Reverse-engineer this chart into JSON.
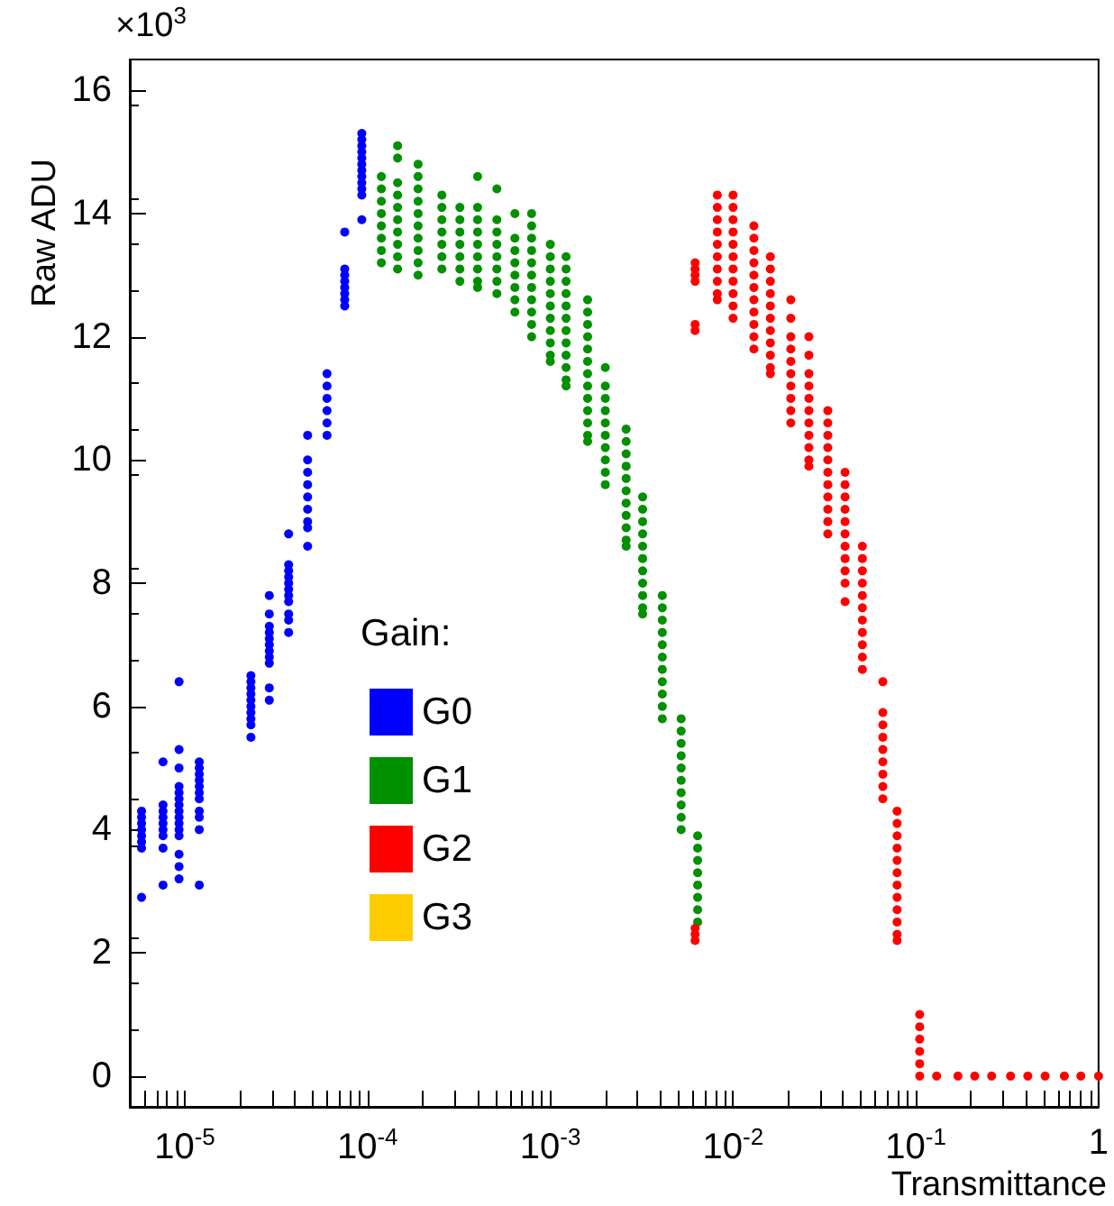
{
  "chart_data": {
    "type": "scatter",
    "xlabel": "Transmittance",
    "ylabel": "Raw ADU",
    "legend_title": "Gain:",
    "annotations": [
      "×10$^{3}$"
    ],
    "log": "x",
    "grid": false,
    "legend": "left",
    "marker": "circle",
    "xlim": [
      5e-06,
      1
    ],
    "ylim": [
      -0.5,
      16.5
    ],
    "xticks": [
      {
        "value": 6e-06,
        "label": null
      },
      {
        "value": 7e-06,
        "label": null
      },
      {
        "value": 8e-06,
        "label": null
      },
      {
        "value": 9e-06,
        "label": null
      },
      {
        "value": 1e-05,
        "label": "10$^{-5}$"
      },
      {
        "value": 2e-05,
        "label": null
      },
      {
        "value": 3e-05,
        "label": null
      },
      {
        "value": 4e-05,
        "label": null
      },
      {
        "value": 5e-05,
        "label": null
      },
      {
        "value": 6e-05,
        "label": null
      },
      {
        "value": 7e-05,
        "label": null
      },
      {
        "value": 8e-05,
        "label": null
      },
      {
        "value": 9e-05,
        "label": null
      },
      {
        "value": 0.0001,
        "label": "10$^{-4}$"
      },
      {
        "value": 0.0002,
        "label": null
      },
      {
        "value": 0.0003,
        "label": null
      },
      {
        "value": 0.0004,
        "label": null
      },
      {
        "value": 0.0005,
        "label": null
      },
      {
        "value": 0.0006,
        "label": null
      },
      {
        "value": 0.0007,
        "label": null
      },
      {
        "value": 0.0008,
        "label": null
      },
      {
        "value": 0.0009,
        "label": null
      },
      {
        "value": 0.001,
        "label": "10$^{-3}$"
      },
      {
        "value": 0.002,
        "label": null
      },
      {
        "value": 0.003,
        "label": null
      },
      {
        "value": 0.004,
        "label": null
      },
      {
        "value": 0.005,
        "label": null
      },
      {
        "value": 0.006,
        "label": null
      },
      {
        "value": 0.007,
        "label": null
      },
      {
        "value": 0.008,
        "label": null
      },
      {
        "value": 0.009,
        "label": null
      },
      {
        "value": 0.01,
        "label": "10$^{-2}$"
      },
      {
        "value": 0.02,
        "label": null
      },
      {
        "value": 0.03,
        "label": null
      },
      {
        "value": 0.04,
        "label": null
      },
      {
        "value": 0.05,
        "label": null
      },
      {
        "value": 0.06,
        "label": null
      },
      {
        "value": 0.07,
        "label": null
      },
      {
        "value": 0.08,
        "label": null
      },
      {
        "value": 0.09,
        "label": null
      },
      {
        "value": 0.1,
        "label": "10$^{-1}$"
      },
      {
        "value": 0.2,
        "label": null
      },
      {
        "value": 0.3,
        "label": null
      },
      {
        "value": 0.4,
        "label": null
      },
      {
        "value": 0.5,
        "label": null
      },
      {
        "value": 0.6,
        "label": null
      },
      {
        "value": 0.7,
        "label": null
      },
      {
        "value": 0.8,
        "label": null
      },
      {
        "value": 0.9,
        "label": null
      },
      {
        "value": 1,
        "label": "1"
      }
    ],
    "yticks": [
      0,
      2,
      4,
      6,
      8,
      10,
      12,
      14,
      16
    ],
    "series": [
      {
        "name": "G0",
        "color": "#0000ff",
        "x": [
          5.8e-06,
          5.8e-06,
          5.8e-06,
          5.8e-06,
          5.8e-06,
          5.8e-06,
          5.8e-06,
          5.8e-06,
          7.6e-06,
          7.6e-06,
          7.6e-06,
          7.6e-06,
          7.6e-06,
          7.6e-06,
          7.6e-06,
          7.6e-06,
          7.6e-06,
          9.3e-06,
          9.3e-06,
          9.3e-06,
          9.3e-06,
          9.3e-06,
          9.3e-06,
          9.3e-06,
          9.3e-06,
          9.3e-06,
          9.3e-06,
          9.3e-06,
          9.3e-06,
          9.3e-06,
          9.3e-06,
          9.3e-06,
          1.2e-05,
          1.2e-05,
          1.2e-05,
          1.2e-05,
          1.2e-05,
          1.2e-05,
          1.2e-05,
          1.2e-05,
          1.2e-05,
          1.2e-05,
          1.2e-05,
          2.3e-05,
          2.3e-05,
          2.3e-05,
          2.3e-05,
          2.3e-05,
          2.3e-05,
          2.3e-05,
          2.3e-05,
          2.3e-05,
          2.3e-05,
          2.9e-05,
          2.9e-05,
          2.9e-05,
          2.9e-05,
          2.9e-05,
          2.9e-05,
          2.9e-05,
          2.9e-05,
          2.9e-05,
          2.9e-05,
          2.9e-05,
          3.7e-05,
          3.7e-05,
          3.7e-05,
          3.7e-05,
          3.7e-05,
          3.7e-05,
          3.7e-05,
          3.7e-05,
          3.7e-05,
          3.7e-05,
          3.7e-05,
          4.7e-05,
          4.7e-05,
          4.7e-05,
          4.7e-05,
          4.7e-05,
          4.7e-05,
          4.7e-05,
          4.7e-05,
          4.7e-05,
          6e-05,
          6e-05,
          6e-05,
          6e-05,
          6e-05,
          6e-05,
          7.5e-05,
          7.5e-05,
          7.5e-05,
          7.5e-05,
          7.5e-05,
          7.5e-05,
          7.5e-05,
          7.5e-05,
          9.3e-05,
          9.3e-05,
          9.3e-05,
          9.3e-05,
          9.3e-05,
          9.3e-05,
          9.3e-05,
          9.3e-05,
          9.3e-05,
          9.3e-05,
          9.3e-05,
          9.3e-05
        ],
        "values": [
          4.3,
          4.2,
          4.1,
          4.0,
          3.9,
          3.8,
          3.7,
          2.9,
          5.1,
          4.4,
          4.3,
          4.2,
          4.1,
          4.0,
          3.9,
          3.7,
          3.1,
          6.4,
          5.3,
          5.0,
          4.7,
          4.6,
          4.5,
          4.4,
          4.3,
          4.2,
          4.1,
          4.0,
          3.9,
          3.6,
          3.4,
          3.2,
          5.1,
          5.0,
          4.9,
          4.8,
          4.7,
          4.6,
          4.5,
          4.3,
          4.2,
          4.0,
          3.1,
          6.5,
          6.4,
          6.3,
          6.2,
          6.1,
          6.0,
          5.9,
          5.8,
          5.7,
          5.5,
          7.8,
          7.5,
          7.3,
          7.2,
          7.1,
          7.0,
          6.9,
          6.8,
          6.7,
          6.3,
          6.1,
          8.8,
          8.3,
          8.2,
          8.1,
          8.0,
          7.9,
          7.8,
          7.7,
          7.5,
          7.4,
          7.2,
          10.4,
          10.0,
          9.8,
          9.6,
          9.4,
          9.2,
          9.0,
          8.9,
          8.6,
          11.4,
          11.2,
          11.0,
          10.8,
          10.6,
          10.4,
          13.7,
          13.1,
          13.0,
          12.9,
          12.8,
          12.7,
          12.6,
          12.5,
          15.3,
          15.2,
          15.1,
          15.0,
          14.9,
          14.8,
          14.7,
          14.6,
          14.5,
          14.4,
          14.3,
          13.9
        ]
      },
      {
        "name": "G1",
        "color": "#009000",
        "x": [
          0.000119,
          0.000119,
          0.000119,
          0.000119,
          0.000119,
          0.000119,
          0.000119,
          0.000119,
          0.000146,
          0.000146,
          0.000146,
          0.000146,
          0.000146,
          0.000146,
          0.000146,
          0.000146,
          0.000146,
          0.000146,
          0.000189,
          0.000189,
          0.000189,
          0.000189,
          0.000189,
          0.000189,
          0.000189,
          0.000189,
          0.000189,
          0.000189,
          0.000255,
          0.000255,
          0.000255,
          0.000255,
          0.000255,
          0.000255,
          0.000255,
          0.00032,
          0.00032,
          0.00032,
          0.00032,
          0.00032,
          0.00032,
          0.00032,
          0.0004,
          0.0004,
          0.0004,
          0.0004,
          0.0004,
          0.0004,
          0.0004,
          0.0004,
          0.0004,
          0.00051,
          0.00051,
          0.00051,
          0.00051,
          0.00051,
          0.00051,
          0.00051,
          0.00051,
          0.00064,
          0.00064,
          0.00064,
          0.00064,
          0.00064,
          0.00064,
          0.00064,
          0.00064,
          0.00079,
          0.00079,
          0.00079,
          0.00079,
          0.00079,
          0.00079,
          0.00079,
          0.00079,
          0.00079,
          0.00079,
          0.00079,
          0.001,
          0.001,
          0.001,
          0.001,
          0.001,
          0.001,
          0.001,
          0.001,
          0.001,
          0.001,
          0.001,
          0.00122,
          0.00122,
          0.00122,
          0.00122,
          0.00122,
          0.00122,
          0.00122,
          0.00122,
          0.00122,
          0.00122,
          0.00122,
          0.00122,
          0.0016,
          0.0016,
          0.0016,
          0.0016,
          0.0016,
          0.0016,
          0.0016,
          0.0016,
          0.0016,
          0.0016,
          0.0016,
          0.0016,
          0.0016,
          0.002,
          0.002,
          0.002,
          0.002,
          0.002,
          0.002,
          0.002,
          0.002,
          0.002,
          0.002,
          0.0026,
          0.0026,
          0.0026,
          0.0026,
          0.0026,
          0.0026,
          0.0026,
          0.0026,
          0.0026,
          0.0026,
          0.0026,
          0.0032,
          0.0032,
          0.0032,
          0.0032,
          0.0032,
          0.0032,
          0.0032,
          0.0032,
          0.0032,
          0.0032,
          0.0032,
          0.0041,
          0.0041,
          0.0041,
          0.0041,
          0.0041,
          0.0041,
          0.0041,
          0.0041,
          0.0041,
          0.0041,
          0.0041,
          0.0052,
          0.0052,
          0.0052,
          0.0052,
          0.0052,
          0.0052,
          0.0052,
          0.0052,
          0.0052,
          0.0052,
          0.0064,
          0.0064,
          0.0064,
          0.0064,
          0.0064,
          0.0064,
          0.0064,
          0.0064
        ],
        "values": [
          14.6,
          14.4,
          14.2,
          14.0,
          13.8,
          13.6,
          13.4,
          13.2,
          15.1,
          14.9,
          14.5,
          14.3,
          14.1,
          13.9,
          13.7,
          13.5,
          13.3,
          13.1,
          14.8,
          14.6,
          14.4,
          14.2,
          14.0,
          13.8,
          13.6,
          13.4,
          13.2,
          13.0,
          14.3,
          14.1,
          13.9,
          13.7,
          13.5,
          13.3,
          13.1,
          14.1,
          13.9,
          13.7,
          13.5,
          13.3,
          13.1,
          12.9,
          14.6,
          14.1,
          13.9,
          13.7,
          13.5,
          13.3,
          13.1,
          12.9,
          12.8,
          14.4,
          13.9,
          13.7,
          13.5,
          13.3,
          13.1,
          12.9,
          12.7,
          14.0,
          13.6,
          13.4,
          13.2,
          13.0,
          12.8,
          12.6,
          12.4,
          14.0,
          13.8,
          13.6,
          13.4,
          13.2,
          13.0,
          12.8,
          12.6,
          12.4,
          12.2,
          12.0,
          13.5,
          13.3,
          13.1,
          12.9,
          12.7,
          12.5,
          12.3,
          12.1,
          11.9,
          11.7,
          11.6,
          13.3,
          13.1,
          12.9,
          12.7,
          12.5,
          12.3,
          12.1,
          11.9,
          11.7,
          11.5,
          11.3,
          11.2,
          12.6,
          12.4,
          12.2,
          12.0,
          11.8,
          11.6,
          11.4,
          11.2,
          11.0,
          10.8,
          10.6,
          10.4,
          10.3,
          11.5,
          11.2,
          11.0,
          10.8,
          10.6,
          10.4,
          10.2,
          10.0,
          9.8,
          9.6,
          10.5,
          10.3,
          10.1,
          9.9,
          9.7,
          9.5,
          9.3,
          9.1,
          8.9,
          8.7,
          8.6,
          9.4,
          9.2,
          9.0,
          8.8,
          8.6,
          8.4,
          8.2,
          8.0,
          7.8,
          7.6,
          7.5,
          7.8,
          7.6,
          7.4,
          7.2,
          7.0,
          6.8,
          6.6,
          6.4,
          6.2,
          6.0,
          5.8,
          5.8,
          5.6,
          5.4,
          5.2,
          5.0,
          4.8,
          4.6,
          4.4,
          4.2,
          4.0,
          3.9,
          3.7,
          3.5,
          3.3,
          3.1,
          2.9,
          2.7,
          2.5
        ]
      },
      {
        "name": "G2",
        "color": "#ff0000",
        "x": [
          0.0062,
          0.0062,
          0.0062,
          0.0062,
          0.0062,
          0.0062,
          0.0062,
          0.0062,
          0.0062,
          0.0082,
          0.0082,
          0.0082,
          0.0082,
          0.0082,
          0.0082,
          0.0082,
          0.0082,
          0.0082,
          0.0082,
          0.01,
          0.01,
          0.01,
          0.01,
          0.01,
          0.01,
          0.01,
          0.01,
          0.01,
          0.01,
          0.01,
          0.013,
          0.013,
          0.013,
          0.013,
          0.013,
          0.013,
          0.013,
          0.013,
          0.013,
          0.013,
          0.013,
          0.016,
          0.016,
          0.016,
          0.016,
          0.016,
          0.016,
          0.016,
          0.016,
          0.016,
          0.016,
          0.016,
          0.0207,
          0.0207,
          0.0207,
          0.0207,
          0.0207,
          0.0207,
          0.0207,
          0.0207,
          0.0207,
          0.0207,
          0.026,
          0.026,
          0.026,
          0.026,
          0.026,
          0.026,
          0.026,
          0.026,
          0.026,
          0.026,
          0.026,
          0.033,
          0.033,
          0.033,
          0.033,
          0.033,
          0.033,
          0.033,
          0.033,
          0.033,
          0.033,
          0.033,
          0.041,
          0.041,
          0.041,
          0.041,
          0.041,
          0.041,
          0.041,
          0.041,
          0.041,
          0.041,
          0.041,
          0.051,
          0.051,
          0.051,
          0.051,
          0.051,
          0.051,
          0.051,
          0.051,
          0.051,
          0.051,
          0.051,
          0.066,
          0.066,
          0.066,
          0.066,
          0.066,
          0.066,
          0.066,
          0.066,
          0.066,
          0.079,
          0.079,
          0.079,
          0.079,
          0.079,
          0.079,
          0.079,
          0.079,
          0.079,
          0.079,
          0.079,
          0.079,
          0.105,
          0.105,
          0.105,
          0.105,
          0.105,
          0.105,
          0.13,
          0.17,
          0.21,
          0.26,
          0.33,
          0.41,
          0.51,
          0.65,
          0.8,
          1.0
        ],
        "values": [
          13.2,
          13.1,
          13.0,
          12.9,
          12.2,
          12.1,
          2.4,
          2.3,
          2.2,
          14.3,
          14.1,
          13.9,
          13.7,
          13.5,
          13.3,
          13.1,
          12.9,
          12.7,
          12.6,
          14.3,
          14.1,
          13.9,
          13.7,
          13.5,
          13.3,
          13.1,
          12.9,
          12.7,
          12.5,
          12.3,
          13.8,
          13.6,
          13.4,
          13.2,
          13.0,
          12.8,
          12.6,
          12.4,
          12.2,
          12.0,
          11.8,
          13.3,
          13.1,
          12.9,
          12.7,
          12.5,
          12.3,
          12.1,
          11.9,
          11.7,
          11.5,
          11.4,
          12.6,
          12.3,
          12.0,
          11.8,
          11.6,
          11.4,
          11.2,
          11.0,
          10.8,
          10.6,
          12.0,
          11.7,
          11.4,
          11.2,
          11.0,
          10.8,
          10.6,
          10.4,
          10.2,
          10.0,
          9.9,
          10.8,
          10.6,
          10.4,
          10.2,
          10.0,
          9.8,
          9.6,
          9.4,
          9.2,
          9.0,
          8.8,
          9.8,
          9.6,
          9.4,
          9.2,
          9.0,
          8.8,
          8.6,
          8.4,
          8.2,
          8.0,
          7.7,
          8.6,
          8.4,
          8.2,
          8.0,
          7.8,
          7.6,
          7.4,
          7.2,
          7.0,
          6.8,
          6.6,
          6.4,
          5.9,
          5.7,
          5.5,
          5.3,
          5.1,
          4.9,
          4.7,
          4.5,
          4.3,
          4.1,
          3.9,
          3.7,
          3.5,
          3.3,
          3.1,
          2.9,
          2.7,
          2.5,
          2.3,
          2.2,
          1.0,
          0.8,
          0.6,
          0.4,
          0.2,
          0.0,
          0,
          0,
          0,
          0,
          0,
          0,
          0,
          0,
          0,
          0
        ]
      },
      {
        "name": "G3",
        "color": "#ffcc00"
      }
    ]
  }
}
